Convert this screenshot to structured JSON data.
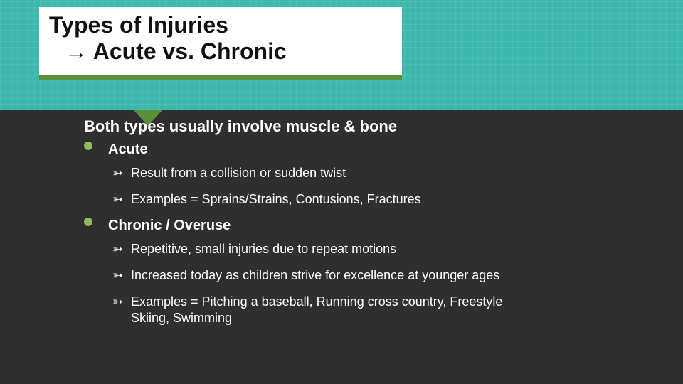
{
  "colors": {
    "banner_bg": "#3cb8ac",
    "slide_bg": "#2f2f2f",
    "title_box_bg": "#ffffff",
    "title_underline": "#5a8f3b",
    "pointer": "#5a8f3b",
    "bullet_dot": "#8fbb5a",
    "text": "#ffffff",
    "title_text": "#111111"
  },
  "typography": {
    "title_fontsize_pt": 24,
    "intro_fontsize_pt": 17,
    "top_label_fontsize_pt": 15,
    "sub_fontsize_pt": 14,
    "font_family": "Arial"
  },
  "title": {
    "line1": "Types of Injuries",
    "arrow_glyph": "→",
    "line2_text": "Acute vs. Chronic"
  },
  "intro": "Both types usually involve muscle & bone",
  "bullets": [
    {
      "label": "Acute",
      "subs": [
        "Result from a collision or sudden twist",
        "Examples = Sprains/Strains, Contusions, Fractures"
      ]
    },
    {
      "label": "Chronic / Overuse",
      "subs": [
        "Repetitive, small injuries due to repeat motions",
        "Increased today as children strive for excellence at younger ages",
        "Examples = Pitching a baseball, Running cross country, Freestyle Skiing, Swimming"
      ]
    }
  ],
  "sub_bullet_glyph": "➳"
}
